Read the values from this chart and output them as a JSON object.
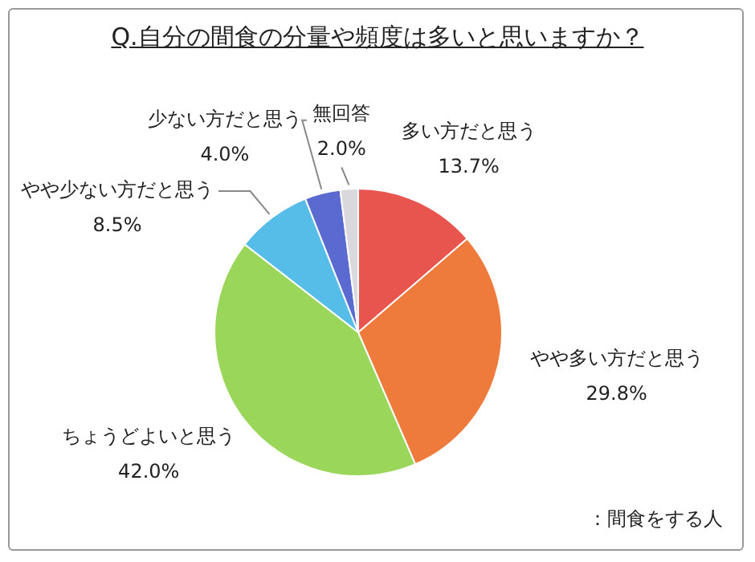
{
  "chart_data": {
    "type": "pie",
    "title": "Q.自分の間食の分量や頻度は多いと思いますか？",
    "categories": [
      "多い方だと思う",
      "やや多い方だと思う",
      "ちょうどよいと思う",
      "やや少ない方だと思う",
      "少ない方だと思う",
      "無回答"
    ],
    "values": [
      13.7,
      29.8,
      42.0,
      8.5,
      4.0,
      2.0
    ],
    "colors": [
      "#e8554e",
      "#ee7b3c",
      "#9ad65a",
      "#55bde8",
      "#5a6ad0",
      "#d9d9dd"
    ],
    "value_labels": [
      "13.7%",
      "29.8%",
      "42.0%",
      "8.5%",
      "4.0%",
      "2.0%"
    ],
    "annotations": [
      "：間食をする人"
    ]
  }
}
